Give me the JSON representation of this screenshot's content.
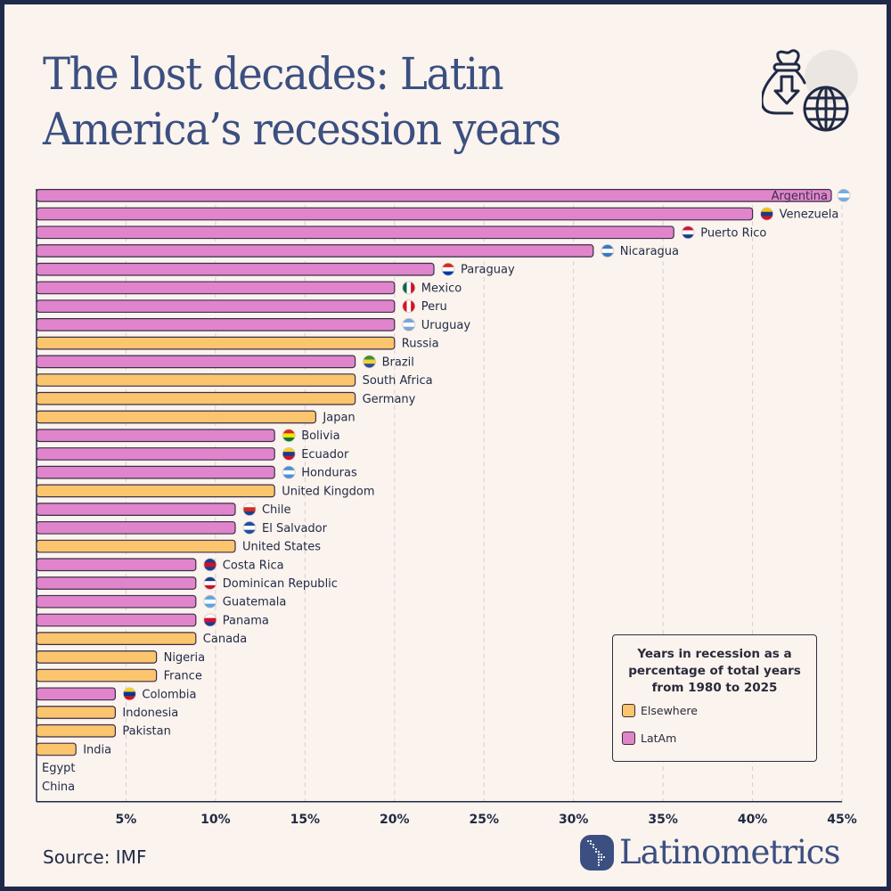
{
  "header": {
    "title_line1": "The lost decades: Latin",
    "title_line2": "America’s recession years",
    "icon": "money-bag-globe-icon"
  },
  "colors": {
    "latam": "#e085cc",
    "elsewhere": "#fbc56e",
    "outline": "#3a2e48",
    "title": "#3b4f80",
    "background": "#fbf3ee",
    "frame": "#1f2a4a"
  },
  "chart_data": {
    "type": "bar",
    "orientation": "horizontal",
    "title": "Years in recession as a percentage of total years from 1980 to 2025",
    "xlabel": "",
    "ylabel": "",
    "xlim": [
      0,
      45
    ],
    "x_ticks": [
      "5%",
      "10%",
      "15%",
      "20%",
      "25%",
      "30%",
      "35%",
      "40%",
      "45%"
    ],
    "x_tick_values": [
      5,
      10,
      15,
      20,
      25,
      30,
      35,
      40,
      45
    ],
    "grid": "vertical dashed",
    "legend_position": "bottom-right",
    "legend": [
      {
        "label": "Elsewhere",
        "group": "elsewhere"
      },
      {
        "label": "LatAm",
        "group": "latam"
      }
    ],
    "categories": [
      "Argentina",
      "Venezuela",
      "Puerto Rico",
      "Nicaragua",
      "Paraguay",
      "Mexico",
      "Peru",
      "Uruguay",
      "Russia",
      "Brazil",
      "South Africa",
      "Germany",
      "Japan",
      "Bolivia",
      "Ecuador",
      "Honduras",
      "United Kingdom",
      "Chile",
      "El Salvador",
      "United States",
      "Costa Rica",
      "Dominican Republic",
      "Guatemala",
      "Panama",
      "Canada",
      "Nigeria",
      "France",
      "Colombia",
      "Indonesia",
      "Pakistan",
      "India",
      "Egypt",
      "China"
    ],
    "values": [
      44.4,
      40.0,
      35.6,
      31.1,
      22.2,
      20.0,
      20.0,
      20.0,
      20.0,
      17.8,
      17.8,
      17.8,
      15.6,
      13.3,
      13.3,
      13.3,
      13.3,
      11.1,
      11.1,
      11.1,
      8.9,
      8.9,
      8.9,
      8.9,
      8.9,
      6.7,
      6.7,
      4.4,
      4.4,
      4.4,
      2.2,
      0,
      0
    ],
    "groups": [
      "latam",
      "latam",
      "latam",
      "latam",
      "latam",
      "latam",
      "latam",
      "latam",
      "elsewhere",
      "latam",
      "elsewhere",
      "elsewhere",
      "elsewhere",
      "latam",
      "latam",
      "latam",
      "elsewhere",
      "latam",
      "latam",
      "elsewhere",
      "latam",
      "latam",
      "latam",
      "latam",
      "elsewhere",
      "elsewhere",
      "elsewhere",
      "latam",
      "elsewhere",
      "elsewhere",
      "elsewhere",
      "elsewhere",
      "elsewhere"
    ],
    "flags": {
      "Argentina": [
        "#74acdf",
        "#ffffff",
        "#74acdf"
      ],
      "Venezuela": [
        "#f4c300",
        "#1e3a8a",
        "#cf142b"
      ],
      "Puerto Rico": [
        "#d21034",
        "#ffffff",
        "#1a3d8f"
      ],
      "Nicaragua": [
        "#3a78c9",
        "#ffffff",
        "#3a78c9"
      ],
      "Paraguay": [
        "#d52b1e",
        "#ffffff",
        "#0038a8"
      ],
      "Mexico": [
        "#006847",
        "#ffffff",
        "#ce1126"
      ],
      "Peru": [
        "#d91023",
        "#ffffff",
        "#d91023"
      ],
      "Uruguay": [
        "#7aa6dc",
        "#ffffff",
        "#7aa6dc"
      ],
      "Brazil": [
        "#3e8f2e",
        "#f2d13c",
        "#2c4a9a"
      ],
      "Bolivia": [
        "#d52b1e",
        "#f9e300",
        "#007934"
      ],
      "Ecuador": [
        "#f6d21a",
        "#1e3a8a",
        "#d0102b"
      ],
      "Honduras": [
        "#4a8fd8",
        "#ffffff",
        "#4a8fd8"
      ],
      "Chile": [
        "#ffffff",
        "#d52b1e",
        "#1a3d8f"
      ],
      "El Salvador": [
        "#1f4fa0",
        "#ffffff",
        "#1f4fa0"
      ],
      "Costa Rica": [
        "#1a3d8f",
        "#ce1126",
        "#1a3d8f"
      ],
      "Dominican Republic": [
        "#1a3d8f",
        "#ffffff",
        "#ce1126"
      ],
      "Guatemala": [
        "#5ea4e0",
        "#ffffff",
        "#5ea4e0"
      ],
      "Panama": [
        "#ffffff",
        "#d21034",
        "#1a3d8f"
      ],
      "Colombia": [
        "#fcd116",
        "#003893",
        "#ce1126"
      ]
    }
  },
  "footer": {
    "source": "Source: IMF",
    "brand": "Latinometrics",
    "brand_icon": "latin-america-map-icon"
  }
}
